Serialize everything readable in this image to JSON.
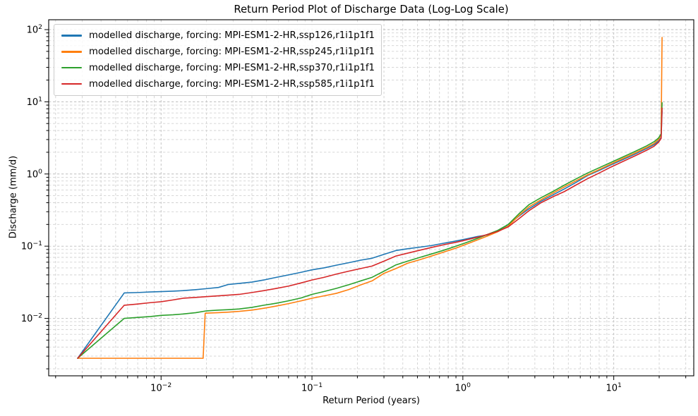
{
  "chart_data": {
    "type": "line",
    "title": "Return Period Plot of Discharge Data (Log-Log Scale)",
    "xlabel": "Return Period (years)",
    "ylabel": "Discharge (mm/d)",
    "xscale": "log",
    "yscale": "log",
    "xlim": [
      0.0018,
      33.9
    ],
    "ylim": [
      0.0016,
      137
    ],
    "x_major_tick_exponents": [
      -2,
      -1,
      0,
      1
    ],
    "y_major_tick_exponents": [
      2,
      1,
      0,
      -1,
      -2
    ],
    "grid": {
      "visible": true,
      "which": "both",
      "linestyle": "dashed",
      "major_color": "#bdbdbd",
      "minor_color": "#d2d2d2"
    },
    "legend_position": "upper left",
    "spine_color": "#000000",
    "series": [
      {
        "name": "modelled discharge, forcing: MPI-ESM1-2-HR,ssp126,r1i1p1f1",
        "color": "#1f77b4",
        "points": [
          [
            0.0028,
            0.0028
          ],
          [
            0.0057,
            0.0225
          ],
          [
            0.007,
            0.0228
          ],
          [
            0.0085,
            0.0232
          ],
          [
            0.01,
            0.0235
          ],
          [
            0.012,
            0.0238
          ],
          [
            0.014,
            0.0242
          ],
          [
            0.017,
            0.025
          ],
          [
            0.02,
            0.0258
          ],
          [
            0.024,
            0.0268
          ],
          [
            0.028,
            0.0295
          ],
          [
            0.033,
            0.0305
          ],
          [
            0.04,
            0.0318
          ],
          [
            0.048,
            0.034
          ],
          [
            0.058,
            0.037
          ],
          [
            0.07,
            0.04
          ],
          [
            0.085,
            0.0435
          ],
          [
            0.1,
            0.047
          ],
          [
            0.12,
            0.05
          ],
          [
            0.145,
            0.0545
          ],
          [
            0.175,
            0.059
          ],
          [
            0.21,
            0.064
          ],
          [
            0.25,
            0.068
          ],
          [
            0.3,
            0.077
          ],
          [
            0.36,
            0.087
          ],
          [
            0.43,
            0.092
          ],
          [
            0.52,
            0.097
          ],
          [
            0.62,
            0.102
          ],
          [
            0.75,
            0.11
          ],
          [
            0.9,
            0.118
          ],
          [
            1.05,
            0.126
          ],
          [
            1.25,
            0.136
          ],
          [
            1.45,
            0.143
          ],
          [
            1.7,
            0.16
          ],
          [
            2.0,
            0.2
          ],
          [
            2.35,
            0.26
          ],
          [
            2.74,
            0.33
          ],
          [
            3.3,
            0.42
          ],
          [
            4.0,
            0.52
          ],
          [
            4.7,
            0.62
          ],
          [
            5.6,
            0.76
          ],
          [
            6.7,
            0.95
          ],
          [
            8.0,
            1.12
          ],
          [
            9.6,
            1.34
          ],
          [
            11.5,
            1.58
          ],
          [
            13.8,
            1.88
          ],
          [
            16.5,
            2.25
          ],
          [
            18.5,
            2.55
          ],
          [
            19.8,
            2.85
          ],
          [
            20.6,
            3.2
          ],
          [
            20.9,
            7.5
          ]
        ]
      },
      {
        "name": "modelled discharge, forcing: MPI-ESM1-2-HR,ssp245,r1i1p1f1",
        "color": "#ff7f0e",
        "points": [
          [
            0.0028,
            0.0028
          ],
          [
            0.019,
            0.0028
          ],
          [
            0.0196,
            0.0118
          ],
          [
            0.024,
            0.012
          ],
          [
            0.028,
            0.0122
          ],
          [
            0.033,
            0.0125
          ],
          [
            0.04,
            0.013
          ],
          [
            0.048,
            0.0138
          ],
          [
            0.058,
            0.0148
          ],
          [
            0.07,
            0.016
          ],
          [
            0.085,
            0.0175
          ],
          [
            0.1,
            0.019
          ],
          [
            0.12,
            0.0205
          ],
          [
            0.145,
            0.0222
          ],
          [
            0.175,
            0.025
          ],
          [
            0.21,
            0.029
          ],
          [
            0.25,
            0.033
          ],
          [
            0.3,
            0.042
          ],
          [
            0.36,
            0.049
          ],
          [
            0.43,
            0.058
          ],
          [
            0.52,
            0.065
          ],
          [
            0.62,
            0.073
          ],
          [
            0.75,
            0.083
          ],
          [
            0.9,
            0.094
          ],
          [
            1.05,
            0.106
          ],
          [
            1.25,
            0.122
          ],
          [
            1.45,
            0.138
          ],
          [
            1.7,
            0.158
          ],
          [
            2.0,
            0.19
          ],
          [
            2.35,
            0.265
          ],
          [
            2.74,
            0.35
          ],
          [
            3.3,
            0.44
          ],
          [
            4.0,
            0.55
          ],
          [
            4.7,
            0.66
          ],
          [
            5.6,
            0.8
          ],
          [
            6.7,
            0.97
          ],
          [
            8.0,
            1.15
          ],
          [
            9.6,
            1.38
          ],
          [
            11.5,
            1.64
          ],
          [
            13.8,
            1.95
          ],
          [
            16.5,
            2.33
          ],
          [
            18.5,
            2.65
          ],
          [
            19.8,
            3.0
          ],
          [
            20.6,
            3.5
          ],
          [
            20.9,
            78.0
          ]
        ]
      },
      {
        "name": "modelled discharge, forcing: MPI-ESM1-2-HR,ssp370,r1i1p1f1",
        "color": "#2ca02c",
        "points": [
          [
            0.0028,
            0.0028
          ],
          [
            0.0057,
            0.01
          ],
          [
            0.007,
            0.0103
          ],
          [
            0.0085,
            0.0106
          ],
          [
            0.01,
            0.011
          ],
          [
            0.012,
            0.0112
          ],
          [
            0.014,
            0.0115
          ],
          [
            0.017,
            0.012
          ],
          [
            0.02,
            0.0127
          ],
          [
            0.024,
            0.013
          ],
          [
            0.028,
            0.0132
          ],
          [
            0.033,
            0.0135
          ],
          [
            0.04,
            0.0142
          ],
          [
            0.048,
            0.0152
          ],
          [
            0.058,
            0.0162
          ],
          [
            0.07,
            0.0175
          ],
          [
            0.085,
            0.0192
          ],
          [
            0.1,
            0.0215
          ],
          [
            0.12,
            0.0235
          ],
          [
            0.145,
            0.026
          ],
          [
            0.175,
            0.0292
          ],
          [
            0.21,
            0.033
          ],
          [
            0.25,
            0.037
          ],
          [
            0.3,
            0.045
          ],
          [
            0.36,
            0.055
          ],
          [
            0.43,
            0.062
          ],
          [
            0.52,
            0.07
          ],
          [
            0.62,
            0.078
          ],
          [
            0.75,
            0.088
          ],
          [
            0.9,
            0.1
          ],
          [
            1.05,
            0.112
          ],
          [
            1.25,
            0.128
          ],
          [
            1.45,
            0.145
          ],
          [
            1.7,
            0.165
          ],
          [
            2.0,
            0.2
          ],
          [
            2.35,
            0.28
          ],
          [
            2.74,
            0.375
          ],
          [
            3.3,
            0.47
          ],
          [
            4.0,
            0.58
          ],
          [
            4.7,
            0.7
          ],
          [
            5.6,
            0.85
          ],
          [
            6.7,
            1.03
          ],
          [
            8.0,
            1.22
          ],
          [
            9.6,
            1.45
          ],
          [
            11.5,
            1.72
          ],
          [
            13.8,
            2.05
          ],
          [
            16.5,
            2.45
          ],
          [
            18.5,
            2.8
          ],
          [
            19.8,
            3.15
          ],
          [
            20.6,
            3.6
          ],
          [
            20.9,
            9.7
          ]
        ]
      },
      {
        "name": "modelled discharge, forcing: MPI-ESM1-2-HR,ssp585,r1i1p1f1",
        "color": "#d62728",
        "points": [
          [
            0.0028,
            0.0028
          ],
          [
            0.0057,
            0.0152
          ],
          [
            0.007,
            0.0158
          ],
          [
            0.0085,
            0.0165
          ],
          [
            0.01,
            0.017
          ],
          [
            0.012,
            0.018
          ],
          [
            0.014,
            0.019
          ],
          [
            0.017,
            0.0195
          ],
          [
            0.02,
            0.02
          ],
          [
            0.024,
            0.0205
          ],
          [
            0.028,
            0.021
          ],
          [
            0.033,
            0.0215
          ],
          [
            0.04,
            0.0228
          ],
          [
            0.048,
            0.0242
          ],
          [
            0.058,
            0.026
          ],
          [
            0.07,
            0.028
          ],
          [
            0.085,
            0.031
          ],
          [
            0.1,
            0.034
          ],
          [
            0.12,
            0.037
          ],
          [
            0.145,
            0.041
          ],
          [
            0.175,
            0.045
          ],
          [
            0.21,
            0.049
          ],
          [
            0.25,
            0.053
          ],
          [
            0.3,
            0.062
          ],
          [
            0.36,
            0.073
          ],
          [
            0.43,
            0.08
          ],
          [
            0.52,
            0.088
          ],
          [
            0.62,
            0.096
          ],
          [
            0.75,
            0.105
          ],
          [
            0.9,
            0.113
          ],
          [
            1.05,
            0.122
          ],
          [
            1.25,
            0.133
          ],
          [
            1.45,
            0.145
          ],
          [
            1.7,
            0.16
          ],
          [
            2.0,
            0.185
          ],
          [
            2.35,
            0.24
          ],
          [
            2.74,
            0.31
          ],
          [
            3.3,
            0.4
          ],
          [
            4.0,
            0.49
          ],
          [
            4.7,
            0.57
          ],
          [
            5.6,
            0.7
          ],
          [
            6.7,
            0.86
          ],
          [
            8.0,
            1.03
          ],
          [
            9.6,
            1.25
          ],
          [
            11.5,
            1.49
          ],
          [
            13.8,
            1.78
          ],
          [
            16.5,
            2.13
          ],
          [
            18.5,
            2.42
          ],
          [
            19.8,
            2.75
          ],
          [
            20.6,
            3.1
          ],
          [
            20.9,
            8.2
          ]
        ]
      }
    ]
  }
}
